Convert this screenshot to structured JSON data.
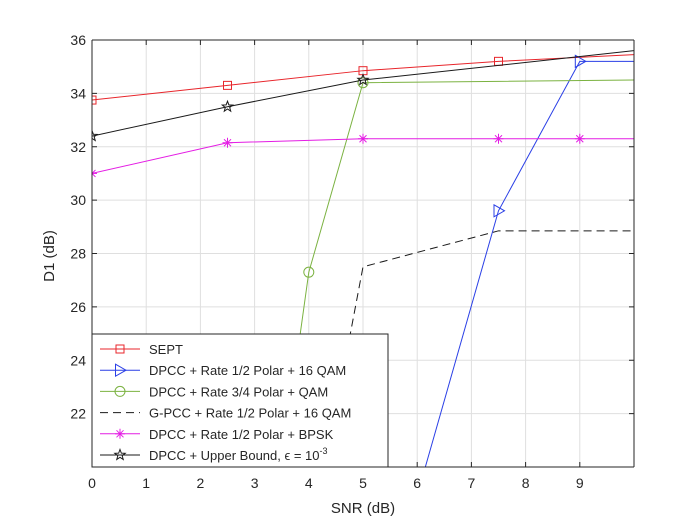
{
  "chart_data": {
    "type": "line",
    "title": "",
    "xlabel": "SNR (dB)",
    "ylabel": "D1 (dB)",
    "xlim": [
      0,
      10
    ],
    "ylim": [
      20,
      36
    ],
    "xticks": [
      0,
      1,
      2,
      3,
      4,
      5,
      6,
      7,
      8,
      9
    ],
    "xtick_labels": [
      "0",
      "1",
      "2",
      "3",
      "4",
      "5",
      "6",
      "7",
      "8",
      "9"
    ],
    "yticks": [
      22,
      24,
      26,
      28,
      30,
      32,
      34,
      36
    ],
    "ytick_labels": [
      "22",
      "24",
      "26",
      "28",
      "30",
      "32",
      "34",
      "36"
    ],
    "grid": true,
    "legend_position": "bottom-left",
    "series": [
      {
        "name": "SEPT",
        "color": "#e8252b",
        "dash": "solid",
        "marker": "square",
        "x": [
          0,
          2.5,
          5,
          7.5,
          10
        ],
        "y": [
          33.75,
          34.3,
          34.85,
          35.2,
          35.45
        ],
        "marker_indices": [
          0,
          1,
          2,
          3
        ]
      },
      {
        "name": "DPCC + Rate 1/2 Polar + 16 QAM",
        "color": "#2a3fe6",
        "dash": "solid",
        "marker": "triangle-right",
        "x": [
          6.15,
          7.5,
          9,
          10
        ],
        "y": [
          20,
          29.6,
          35.2,
          35.2
        ],
        "marker_indices": [
          1,
          2
        ]
      },
      {
        "name": "DPCC + Rate 3/4 Polar + QAM",
        "color": "#7bb241",
        "dash": "solid",
        "marker": "circle",
        "x": [
          3.5,
          4,
          5,
          7.5,
          10
        ],
        "y": [
          20,
          27.3,
          34.4,
          34.45,
          34.5
        ],
        "marker_indices": [
          1,
          2
        ]
      },
      {
        "name": "G-PCC + Rate 1/2 Polar + 16 QAM",
        "color": "#1a1a1a",
        "dash": "dashed",
        "marker": "none",
        "x": [
          4.3,
          5,
          7.5,
          10
        ],
        "y": [
          20,
          27.5,
          28.85,
          28.85
        ],
        "marker_indices": []
      },
      {
        "name": "DPCC + Rate 1/2 Polar + BPSK",
        "color": "#e41de4",
        "dash": "solid",
        "marker": "asterisk",
        "x": [
          0,
          2.5,
          5,
          7.5,
          9,
          10
        ],
        "y": [
          31,
          32.15,
          32.3,
          32.3,
          32.3,
          32.3
        ],
        "marker_indices": [
          0,
          1,
          2,
          3,
          4
        ]
      },
      {
        "name": "DPCC + Upper Bound, ϵ = 10",
        "legend_superscript": "-3",
        "color": "#1a1a1a",
        "dash": "solid",
        "marker": "star",
        "x": [
          0,
          2.5,
          5,
          10
        ],
        "y": [
          32.4,
          33.5,
          34.5,
          35.6
        ],
        "marker_indices": [
          0,
          1,
          2
        ]
      }
    ]
  }
}
